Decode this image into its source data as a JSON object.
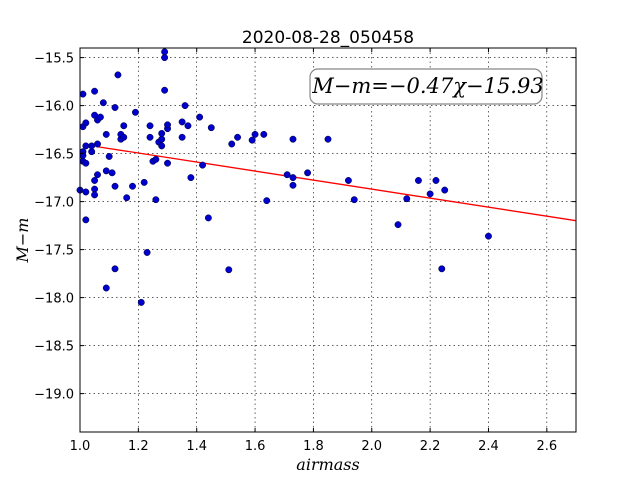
{
  "chart_data": {
    "type": "scatter",
    "title": "2020-08-28_050458",
    "xlabel": "airmass",
    "ylabel": "M−m",
    "xlim": [
      1.0,
      2.7
    ],
    "ylim": [
      -19.4,
      -15.4
    ],
    "y_inverted": true,
    "grid": true,
    "x_ticks": [
      "1.0",
      "1.2",
      "1.4",
      "1.6",
      "1.8",
      "2.0",
      "2.2",
      "2.4",
      "2.6"
    ],
    "y_ticks": [
      "−15.5",
      "−16.0",
      "−16.5",
      "−17.0",
      "−17.5",
      "−18.0",
      "−18.5",
      "−19.0"
    ],
    "annotation": "M−m=−0.47χ−15.93",
    "fit": {
      "slope": -0.47,
      "intercept": -15.93,
      "x_start": 1.06,
      "x_end": 2.7,
      "color": "#ff0000"
    },
    "point_color": "#0000cc",
    "points": [
      [
        1.0,
        -16.88
      ],
      [
        1.01,
        -16.22
      ],
      [
        1.01,
        -16.48
      ],
      [
        1.01,
        -16.58
      ],
      [
        1.01,
        -16.52
      ],
      [
        1.01,
        -15.88
      ],
      [
        1.02,
        -16.18
      ],
      [
        1.02,
        -16.42
      ],
      [
        1.02,
        -16.6
      ],
      [
        1.02,
        -16.9
      ],
      [
        1.02,
        -17.19
      ],
      [
        1.04,
        -16.48
      ],
      [
        1.04,
        -16.42
      ],
      [
        1.05,
        -16.87
      ],
      [
        1.05,
        -16.93
      ],
      [
        1.05,
        -16.78
      ],
      [
        1.05,
        -15.85
      ],
      [
        1.05,
        -16.1
      ],
      [
        1.06,
        -16.15
      ],
      [
        1.06,
        -16.4
      ],
      [
        1.06,
        -16.72
      ],
      [
        1.07,
        -16.12
      ],
      [
        1.08,
        -15.97
      ],
      [
        1.09,
        -16.3
      ],
      [
        1.09,
        -16.68
      ],
      [
        1.09,
        -17.9
      ],
      [
        1.1,
        -16.53
      ],
      [
        1.11,
        -16.7
      ],
      [
        1.12,
        -16.02
      ],
      [
        1.12,
        -16.84
      ],
      [
        1.12,
        -17.7
      ],
      [
        1.13,
        -15.68
      ],
      [
        1.14,
        -16.35
      ],
      [
        1.14,
        -16.3
      ],
      [
        1.15,
        -16.21
      ],
      [
        1.15,
        -16.33
      ],
      [
        1.16,
        -16.96
      ],
      [
        1.18,
        -16.84
      ],
      [
        1.19,
        -16.07
      ],
      [
        1.21,
        -18.05
      ],
      [
        1.22,
        -16.8
      ],
      [
        1.23,
        -17.53
      ],
      [
        1.24,
        -16.21
      ],
      [
        1.24,
        -16.33
      ],
      [
        1.25,
        -16.58
      ],
      [
        1.26,
        -16.56
      ],
      [
        1.26,
        -16.98
      ],
      [
        1.27,
        -16.38
      ],
      [
        1.28,
        -16.42
      ],
      [
        1.28,
        -16.35
      ],
      [
        1.28,
        -16.29
      ],
      [
        1.29,
        -15.44
      ],
      [
        1.29,
        -15.84
      ],
      [
        1.29,
        -15.5
      ],
      [
        1.3,
        -16.24
      ],
      [
        1.3,
        -16.2
      ],
      [
        1.3,
        -16.6
      ],
      [
        1.35,
        -16.33
      ],
      [
        1.35,
        -16.17
      ],
      [
        1.36,
        -16.0
      ],
      [
        1.37,
        -16.21
      ],
      [
        1.38,
        -16.75
      ],
      [
        1.41,
        -16.12
      ],
      [
        1.42,
        -16.62
      ],
      [
        1.44,
        -17.17
      ],
      [
        1.45,
        -16.23
      ],
      [
        1.51,
        -17.71
      ],
      [
        1.52,
        -16.4
      ],
      [
        1.54,
        -16.33
      ],
      [
        1.59,
        -16.36
      ],
      [
        1.6,
        -16.3
      ],
      [
        1.63,
        -16.3
      ],
      [
        1.64,
        -16.99
      ],
      [
        1.71,
        -16.72
      ],
      [
        1.73,
        -16.83
      ],
      [
        1.73,
        -16.75
      ],
      [
        1.73,
        -16.35
      ],
      [
        1.78,
        -16.7
      ],
      [
        1.85,
        -16.35
      ],
      [
        1.92,
        -16.78
      ],
      [
        1.94,
        -16.98
      ],
      [
        2.09,
        -17.24
      ],
      [
        2.12,
        -16.97
      ],
      [
        2.16,
        -16.78
      ],
      [
        2.2,
        -16.92
      ],
      [
        2.22,
        -16.78
      ],
      [
        2.24,
        -17.7
      ],
      [
        2.25,
        -16.88
      ],
      [
        2.4,
        -17.36
      ]
    ]
  }
}
